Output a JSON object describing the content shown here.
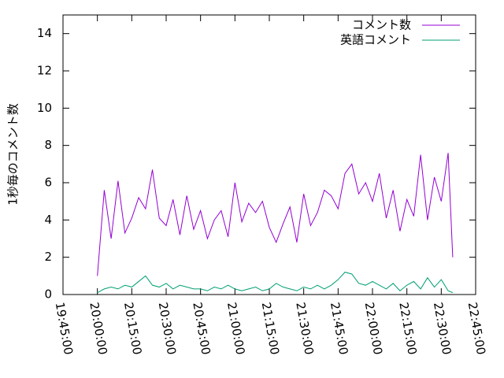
{
  "chart_data": {
    "type": "line",
    "ylabel": "1秒毎のコメント数",
    "x": [
      "20:00:00",
      "20:03:00",
      "20:06:00",
      "20:09:00",
      "20:12:00",
      "20:15:00",
      "20:18:00",
      "20:21:00",
      "20:24:00",
      "20:27:00",
      "20:30:00",
      "20:33:00",
      "20:36:00",
      "20:39:00",
      "20:42:00",
      "20:45:00",
      "20:48:00",
      "20:51:00",
      "20:54:00",
      "20:57:00",
      "21:00:00",
      "21:03:00",
      "21:06:00",
      "21:09:00",
      "21:12:00",
      "21:15:00",
      "21:18:00",
      "21:21:00",
      "21:24:00",
      "21:27:00",
      "21:30:00",
      "21:33:00",
      "21:36:00",
      "21:39:00",
      "21:42:00",
      "21:45:00",
      "21:48:00",
      "21:51:00",
      "21:54:00",
      "21:57:00",
      "22:00:00",
      "22:03:00",
      "22:06:00",
      "22:09:00",
      "22:12:00",
      "22:15:00",
      "22:18:00",
      "22:21:00",
      "22:24:00",
      "22:27:00",
      "22:30:00",
      "22:33:00",
      "22:35:00"
    ],
    "series": [
      {
        "name": "コメント数",
        "color": "#9400d3",
        "values": [
          1.0,
          5.6,
          3.0,
          6.1,
          3.3,
          4.1,
          5.2,
          4.6,
          6.7,
          4.1,
          3.7,
          5.1,
          3.2,
          5.3,
          3.5,
          4.5,
          3.0,
          4.0,
          4.5,
          3.1,
          6.0,
          3.9,
          4.9,
          4.4,
          5.0,
          3.6,
          2.8,
          3.8,
          4.7,
          2.8,
          5.4,
          3.7,
          4.4,
          5.6,
          5.3,
          4.6,
          6.5,
          7.0,
          5.4,
          6.0,
          5.0,
          6.5,
          4.1,
          5.6,
          3.4,
          5.1,
          4.2,
          7.5,
          4.0,
          6.3,
          5.0,
          7.6,
          2.0
        ]
      },
      {
        "name": "英語コメント",
        "color": "#009e73",
        "values": [
          0.1,
          0.3,
          0.4,
          0.3,
          0.5,
          0.4,
          0.7,
          1.0,
          0.5,
          0.4,
          0.6,
          0.3,
          0.5,
          0.4,
          0.3,
          0.3,
          0.2,
          0.4,
          0.3,
          0.5,
          0.3,
          0.2,
          0.3,
          0.4,
          0.2,
          0.3,
          0.6,
          0.4,
          0.3,
          0.2,
          0.4,
          0.3,
          0.5,
          0.3,
          0.5,
          0.8,
          1.2,
          1.1,
          0.6,
          0.5,
          0.7,
          0.5,
          0.3,
          0.6,
          0.2,
          0.5,
          0.7,
          0.3,
          0.9,
          0.4,
          0.8,
          0.2,
          0.1
        ]
      }
    ],
    "xlim": [
      "19:45:00",
      "22:45:00"
    ],
    "xticks": [
      "19:45:00",
      "20:00:00",
      "20:15:00",
      "20:30:00",
      "20:45:00",
      "21:00:00",
      "21:15:00",
      "21:30:00",
      "21:45:00",
      "22:00:00",
      "22:15:00",
      "22:30:00",
      "22:45:00"
    ],
    "ylim": [
      0,
      15
    ],
    "yticks": [
      0,
      2,
      4,
      6,
      8,
      10,
      12,
      14
    ],
    "legend": "top-right"
  }
}
